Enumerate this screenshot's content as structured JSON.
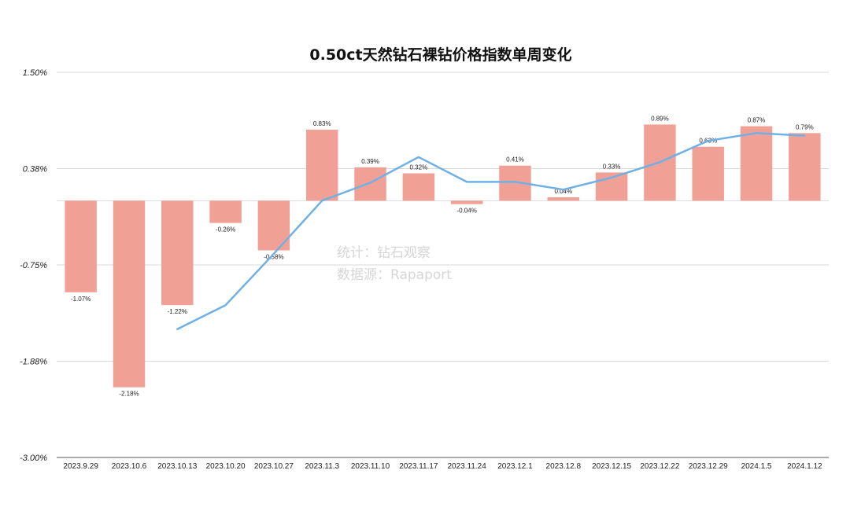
{
  "chart_data": {
    "type": "bar",
    "title": "0.50ct天然钻石裸钻价格指数单周变化",
    "categories": [
      "2023.9.29",
      "2023.10.6",
      "2023.10.13",
      "2023.10.20",
      "2023.10.27",
      "2023.11.3",
      "2023.11.10",
      "2023.11.17",
      "2023.11.24",
      "2023.12.1",
      "2023.12.8",
      "2023.12.15",
      "2023.12.22",
      "2023.12.29",
      "2024.1.5",
      "2024.1.12"
    ],
    "values": [
      -1.07,
      -2.18,
      -1.22,
      -0.26,
      -0.58,
      0.83,
      0.39,
      0.32,
      -0.04,
      0.41,
      0.04,
      0.33,
      0.89,
      0.63,
      0.87,
      0.79
    ],
    "value_labels": [
      "-1.07%",
      "-2.18%",
      "-1.22%",
      "-0.26%",
      "-0.58%",
      "0.83%",
      "0.39%",
      "0.32%",
      "-0.04%",
      "0.41%",
      "0.04%",
      "0.33%",
      "0.89%",
      "0.63%",
      "0.87%",
      "0.79%"
    ],
    "trend_line": {
      "start_index": 2,
      "values": [
        -1.5,
        -1.22,
        -0.62,
        0.0,
        0.21,
        0.51,
        0.22,
        0.22,
        0.13,
        0.27,
        0.45,
        0.7,
        0.79,
        0.76
      ]
    },
    "yticks": [
      "1.50%",
      "0.38%",
      "-0.75%",
      "-1.88%",
      "-3.00%"
    ],
    "ytick_values": [
      1.5,
      0.375,
      -0.75,
      -1.875,
      -3.0
    ],
    "ylim": [
      -3.0,
      1.5
    ],
    "xlabel": "",
    "ylabel": "",
    "grid": true,
    "colors": {
      "bar": "#f0a095",
      "line": "#6fb1e4",
      "grid": "#d9d9d9"
    }
  },
  "watermark": {
    "line1": "统计：钻石观察",
    "line2": "数据源：Rapaport"
  }
}
